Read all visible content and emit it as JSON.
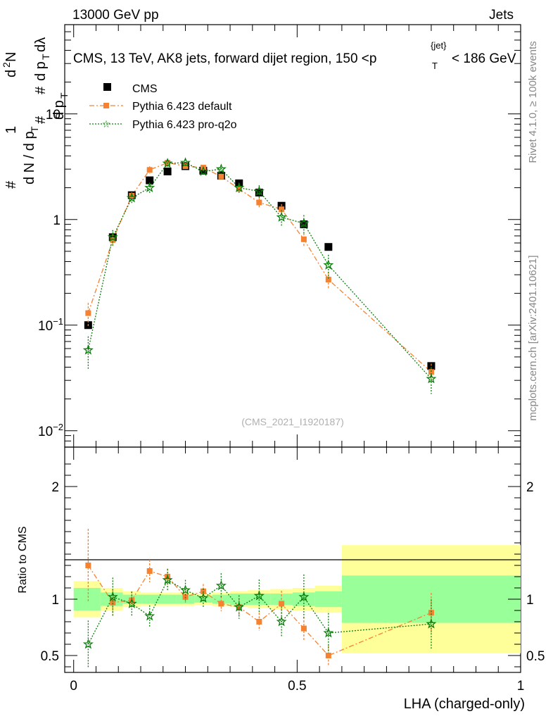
{
  "header": {
    "energy": "13000 GeV pp",
    "category": "Jets"
  },
  "side_labels": {
    "rivet": "Rivet 4.1.0, ≥ 100k events",
    "url": "mcplots.cern.ch [arXiv:2401.10621]"
  },
  "colors": {
    "data": "#000000",
    "default": "#f58231",
    "proq2o": "#0a7d0a",
    "band_outer": "#ffff99",
    "band_inner": "#99ff99"
  },
  "chart_data": [
    {
      "type": "scatter",
      "panel": "main",
      "title": "CMS, 13 TeV, AK8 jets, forward dijet region, 150 <p_T^{jet}< 186 GeV",
      "ylabel": "1/(dN/dp_T) d²N/(dp_T dλ)",
      "yscale": "log",
      "ylim": [
        0.007,
        70
      ],
      "xlim": [
        -0.02,
        1.0
      ],
      "yticks": [
        {
          "value": 0.01,
          "label_base": "10",
          "label_exp": "−2"
        },
        {
          "value": 0.1,
          "label_base": "10",
          "label_exp": "−1"
        },
        {
          "value": 1,
          "label_base": "1",
          "label_exp": ""
        },
        {
          "value": 10,
          "label_base": "10",
          "label_exp": ""
        }
      ],
      "watermark": "(CMS_2021_I1920187)",
      "legend": [
        "CMS",
        "Pythia 6.423 default",
        "Pythia 6.423 pro-q2o"
      ],
      "x": [
        0.0325,
        0.0875,
        0.13,
        0.17,
        0.21,
        0.25,
        0.29,
        0.33,
        0.37,
        0.415,
        0.465,
        0.515,
        0.57,
        0.8
      ],
      "series": [
        {
          "name": "CMS",
          "values": [
            0.1,
            0.68,
            1.7,
            2.35,
            2.85,
            3.2,
            2.9,
            2.6,
            2.2,
            1.8,
            1.35,
            0.9,
            0.55,
            0.041
          ]
        },
        {
          "name": "Pythia 6.423 default",
          "values": [
            0.13,
            0.64,
            1.68,
            2.95,
            3.45,
            3.2,
            3.1,
            2.55,
            1.95,
            1.45,
            1.25,
            0.65,
            0.27,
            0.036
          ]
        },
        {
          "name": "Pythia 6.423 pro-q2o",
          "values": [
            0.058,
            0.68,
            1.6,
            2.0,
            3.4,
            3.45,
            2.85,
            3.0,
            2.0,
            1.85,
            1.05,
            0.92,
            0.37,
            0.031
          ]
        }
      ]
    },
    {
      "type": "line",
      "panel": "ratio",
      "ylabel": "Ratio to CMS",
      "xlabel": "LHA (charged-only)",
      "ylim": [
        0.35,
        2.35
      ],
      "xlim": [
        -0.02,
        1.0
      ],
      "yticks": [
        {
          "value": 0.5,
          "label": "0.5"
        },
        {
          "value": 1,
          "label": "1"
        },
        {
          "value": 2,
          "label": "2"
        }
      ],
      "xticks": [
        {
          "value": 0,
          "label": "0"
        },
        {
          "value": 0.5,
          "label": "0.5"
        },
        {
          "value": 1,
          "label": "1"
        }
      ],
      "x": [
        0.0325,
        0.0875,
        0.13,
        0.17,
        0.21,
        0.25,
        0.29,
        0.33,
        0.37,
        0.415,
        0.465,
        0.515,
        0.57,
        0.8
      ],
      "bin_edges": [
        0.0,
        0.06,
        0.11,
        0.15,
        0.19,
        0.23,
        0.27,
        0.31,
        0.35,
        0.39,
        0.44,
        0.49,
        0.54,
        0.6,
        1.0
      ],
      "band_outer": {
        "low": [
          0.84,
          0.9,
          0.93,
          0.94,
          0.94,
          0.94,
          0.95,
          0.94,
          0.93,
          0.92,
          0.91,
          0.9,
          0.88,
          0.52
        ],
        "high": [
          1.16,
          1.1,
          1.07,
          1.06,
          1.06,
          1.06,
          1.05,
          1.06,
          1.07,
          1.08,
          1.09,
          1.1,
          1.12,
          1.48
        ]
      },
      "band_inner": {
        "low": [
          0.9,
          0.94,
          0.96,
          0.96,
          0.96,
          0.96,
          0.97,
          0.96,
          0.95,
          0.95,
          0.95,
          0.94,
          0.93,
          0.79
        ],
        "high": [
          1.1,
          1.06,
          1.04,
          1.04,
          1.04,
          1.04,
          1.03,
          1.04,
          1.05,
          1.05,
          1.05,
          1.06,
          1.07,
          1.21
        ]
      },
      "series": [
        {
          "name": "Pythia 6.423 default",
          "values": [
            1.3,
            0.97,
            0.99,
            1.25,
            1.2,
            1.02,
            1.07,
            0.96,
            0.93,
            0.8,
            0.96,
            0.74,
            0.5,
            0.88
          ]
        },
        {
          "name": "Pythia 6.423 pro-q2o",
          "values": [
            0.6,
            1.02,
            0.96,
            0.85,
            1.17,
            1.08,
            1.01,
            1.12,
            0.93,
            1.03,
            0.8,
            1.02,
            0.7,
            0.78
          ]
        }
      ]
    }
  ]
}
